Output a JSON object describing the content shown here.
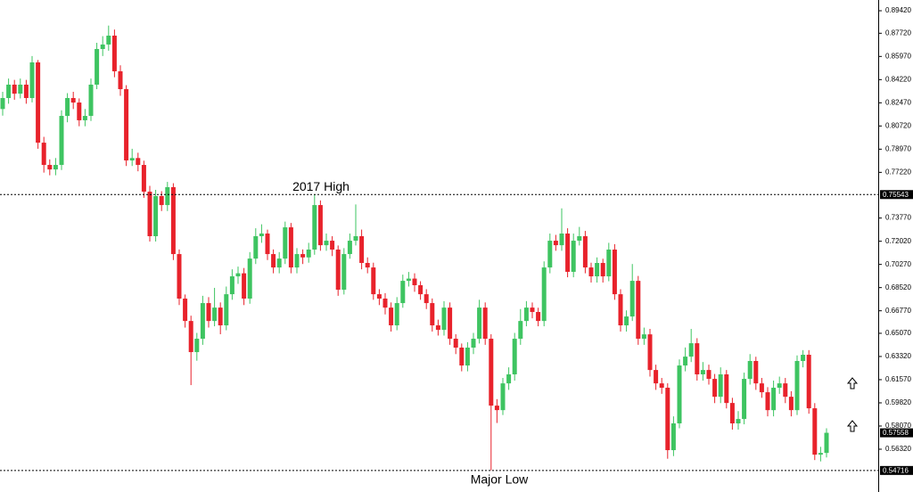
{
  "chart_data": {
    "type": "candlestick",
    "up_color": "#3ec461",
    "down_color": "#e8222b",
    "ylim": [
      0.5309,
      0.9023
    ],
    "yticks": [
      {
        "value": 0.8942,
        "label": "0.89420"
      },
      {
        "value": 0.8772,
        "label": "0.87720"
      },
      {
        "value": 0.8597,
        "label": "0.85970"
      },
      {
        "value": 0.8422,
        "label": "0.84220"
      },
      {
        "value": 0.8247,
        "label": "0.82470"
      },
      {
        "value": 0.8072,
        "label": "0.80720"
      },
      {
        "value": 0.7897,
        "label": "0.78970"
      },
      {
        "value": 0.7722,
        "label": "0.77220"
      },
      {
        "value": 0.7377,
        "label": "0.73770"
      },
      {
        "value": 0.7202,
        "label": "0.72020"
      },
      {
        "value": 0.7027,
        "label": "0.70270"
      },
      {
        "value": 0.6852,
        "label": "0.68520"
      },
      {
        "value": 0.6677,
        "label": "0.66770"
      },
      {
        "value": 0.6507,
        "label": "0.65070"
      },
      {
        "value": 0.6332,
        "label": "0.63320"
      },
      {
        "value": 0.6157,
        "label": "0.61570"
      },
      {
        "value": 0.5982,
        "label": "0.59820"
      },
      {
        "value": 0.5807,
        "label": "0.58070"
      },
      {
        "value": 0.5632,
        "label": "0.56320"
      }
    ],
    "price_lines": [
      0.75543,
      0.54716
    ],
    "current_price": 0.57558,
    "annotations": [
      {
        "text": "2017 High",
        "value": 0.75543
      },
      {
        "text": "Major Low",
        "value": 0.54716
      }
    ],
    "open": [
      0.82,
      0.8283,
      0.8384,
      0.8316,
      0.8384,
      0.8283,
      0.8552,
      0.7946,
      0.7778,
      0.7744,
      0.7778,
      0.8148,
      0.8283,
      0.8249,
      0.8115,
      0.8148,
      0.8384,
      0.8653,
      0.8687,
      0.8754,
      0.8485,
      0.835,
      0.7812,
      0.783,
      0.7778,
      0.7576,
      0.724,
      0.7543,
      0.7475,
      0.761,
      0.7105,
      0.6769,
      0.66,
      0.6365,
      0.6466,
      0.6735,
      0.66,
      0.6701,
      0.6567,
      0.6802,
      0.6937,
      0.696,
      0.6769,
      0.7071,
      0.724,
      0.726,
      0.7105,
      0.7004,
      0.7071,
      0.7307,
      0.7004,
      0.7105,
      0.708,
      0.7139,
      0.7475,
      0.7172,
      0.7206,
      0.7139,
      0.6836,
      0.7105,
      0.7206,
      0.724,
      0.7038,
      0.7004,
      0.6802,
      0.6769,
      0.6701,
      0.6567,
      0.6735,
      0.6903,
      0.692,
      0.687,
      0.6802,
      0.6735,
      0.6567,
      0.6533,
      0.6701,
      0.6466,
      0.6399,
      0.6264,
      0.6399,
      0.6466,
      0.6701,
      0.6466,
      0.5961,
      0.5927,
      0.6129,
      0.6197,
      0.6466,
      0.66,
      0.6701,
      0.6668,
      0.66,
      0.7004,
      0.7206,
      0.7172,
      0.726,
      0.6971,
      0.7206,
      0.724,
      0.7004,
      0.6937,
      0.7038,
      0.6937,
      0.7139,
      0.6802,
      0.6567,
      0.6634,
      0.6903,
      0.6466,
      0.6499,
      0.623,
      0.6129,
      0.6096,
      0.5625,
      0.5827,
      0.6264,
      0.6331,
      0.6432,
      0.6197,
      0.623,
      0.6163,
      0.6028,
      0.6197,
      0.5981,
      0.5827,
      0.586,
      0.6163,
      0.6298,
      0.6129,
      0.6062,
      0.5927,
      0.6096,
      0.6129,
      0.6028,
      0.5927,
      0.6298,
      0.6345,
      0.5941,
      0.5591,
      0.5604
    ],
    "high": [
      0.833,
      0.843,
      0.842,
      0.843,
      0.842,
      0.86,
      0.857,
      0.799,
      0.782,
      0.783,
      0.819,
      0.832,
      0.833,
      0.828,
      0.82,
      0.843,
      0.87,
      0.875,
      0.883,
      0.88,
      0.853,
      0.838,
      0.79,
      0.787,
      0.781,
      0.762,
      0.759,
      0.758,
      0.765,
      0.764,
      0.714,
      0.68,
      0.664,
      0.651,
      0.679,
      0.678,
      0.685,
      0.674,
      0.686,
      0.699,
      0.701,
      0.7,
      0.712,
      0.73,
      0.733,
      0.729,
      0.714,
      0.712,
      0.735,
      0.734,
      0.715,
      0.714,
      0.719,
      0.7554,
      0.751,
      0.726,
      0.724,
      0.717,
      0.715,
      0.726,
      0.748,
      0.729,
      0.708,
      0.704,
      0.684,
      0.681,
      0.674,
      0.678,
      0.695,
      0.697,
      0.696,
      0.69,
      0.684,
      0.677,
      0.661,
      0.675,
      0.674,
      0.65,
      0.643,
      0.644,
      0.651,
      0.676,
      0.674,
      0.65,
      0.601,
      0.617,
      0.625,
      0.651,
      0.669,
      0.675,
      0.674,
      0.67,
      0.705,
      0.726,
      0.725,
      0.745,
      0.73,
      0.726,
      0.731,
      0.728,
      0.704,
      0.708,
      0.707,
      0.719,
      0.718,
      0.684,
      0.668,
      0.703,
      0.694,
      0.655,
      0.654,
      0.627,
      0.617,
      0.613,
      0.588,
      0.631,
      0.64,
      0.654,
      0.647,
      0.629,
      0.627,
      0.62,
      0.625,
      0.623,
      0.602,
      0.592,
      0.621,
      0.635,
      0.633,
      0.617,
      0.61,
      0.615,
      0.618,
      0.617,
      0.607,
      0.634,
      0.638,
      0.638,
      0.598,
      0.565,
      0.579
    ],
    "low": [
      0.815,
      0.824,
      0.827,
      0.828,
      0.824,
      0.825,
      0.79,
      0.772,
      0.77,
      0.77,
      0.774,
      0.81,
      0.82,
      0.807,
      0.807,
      0.811,
      0.835,
      0.86,
      0.864,
      0.844,
      0.83,
      0.777,
      0.777,
      0.773,
      0.753,
      0.72,
      0.72,
      0.743,
      0.743,
      0.706,
      0.672,
      0.655,
      0.6116,
      0.63,
      0.642,
      0.655,
      0.656,
      0.65,
      0.653,
      0.676,
      0.688,
      0.672,
      0.673,
      0.703,
      0.719,
      0.706,
      0.696,
      0.696,
      0.703,
      0.696,
      0.696,
      0.703,
      0.704,
      0.71,
      0.713,
      0.713,
      0.709,
      0.679,
      0.68,
      0.707,
      0.717,
      0.699,
      0.696,
      0.676,
      0.672,
      0.665,
      0.652,
      0.653,
      0.67,
      0.686,
      0.682,
      0.676,
      0.669,
      0.652,
      0.649,
      0.649,
      0.642,
      0.635,
      0.622,
      0.622,
      0.635,
      0.643,
      0.642,
      0.5472,
      0.583,
      0.589,
      0.608,
      0.615,
      0.642,
      0.656,
      0.662,
      0.656,
      0.656,
      0.696,
      0.713,
      0.713,
      0.693,
      0.693,
      0.717,
      0.696,
      0.689,
      0.689,
      0.689,
      0.69,
      0.676,
      0.652,
      0.652,
      0.66,
      0.642,
      0.642,
      0.618,
      0.608,
      0.605,
      0.556,
      0.558,
      0.579,
      0.622,
      0.629,
      0.615,
      0.615,
      0.612,
      0.598,
      0.598,
      0.594,
      0.578,
      0.578,
      0.582,
      0.612,
      0.608,
      0.602,
      0.588,
      0.588,
      0.605,
      0.598,
      0.588,
      0.589,
      0.625,
      0.59,
      0.555,
      0.554,
      0.557
    ],
    "close": [
      0.8283,
      0.8384,
      0.8316,
      0.8384,
      0.8283,
      0.8552,
      0.7946,
      0.7778,
      0.7744,
      0.7778,
      0.8148,
      0.8283,
      0.8249,
      0.8115,
      0.8148,
      0.8384,
      0.8653,
      0.8687,
      0.8754,
      0.8485,
      0.835,
      0.7812,
      0.783,
      0.7778,
      0.7576,
      0.724,
      0.7543,
      0.7475,
      0.761,
      0.7105,
      0.6769,
      0.66,
      0.6365,
      0.6466,
      0.6735,
      0.66,
      0.6701,
      0.6567,
      0.6802,
      0.6937,
      0.696,
      0.6769,
      0.7071,
      0.724,
      0.726,
      0.7105,
      0.7004,
      0.7071,
      0.7307,
      0.7004,
      0.7105,
      0.708,
      0.7139,
      0.7475,
      0.7172,
      0.7206,
      0.7139,
      0.6836,
      0.7105,
      0.7206,
      0.724,
      0.7038,
      0.7004,
      0.6802,
      0.6769,
      0.6701,
      0.6567,
      0.6735,
      0.6903,
      0.692,
      0.687,
      0.6802,
      0.6735,
      0.6567,
      0.6533,
      0.6701,
      0.6466,
      0.6399,
      0.6264,
      0.6399,
      0.6466,
      0.6701,
      0.6466,
      0.5961,
      0.5927,
      0.6129,
      0.6197,
      0.6466,
      0.66,
      0.6701,
      0.6668,
      0.66,
      0.7004,
      0.7206,
      0.7172,
      0.726,
      0.6971,
      0.7206,
      0.724,
      0.7004,
      0.6937,
      0.7038,
      0.6937,
      0.7139,
      0.6802,
      0.6567,
      0.6634,
      0.6903,
      0.6466,
      0.6499,
      0.623,
      0.6129,
      0.6096,
      0.5625,
      0.5827,
      0.6264,
      0.6331,
      0.6432,
      0.6197,
      0.623,
      0.6163,
      0.6028,
      0.6197,
      0.5981,
      0.5827,
      0.586,
      0.6163,
      0.6298,
      0.6129,
      0.6062,
      0.5927,
      0.6096,
      0.6129,
      0.6028,
      0.5927,
      0.6298,
      0.6345,
      0.5941,
      0.5591,
      0.5604,
      0.5756
    ]
  }
}
